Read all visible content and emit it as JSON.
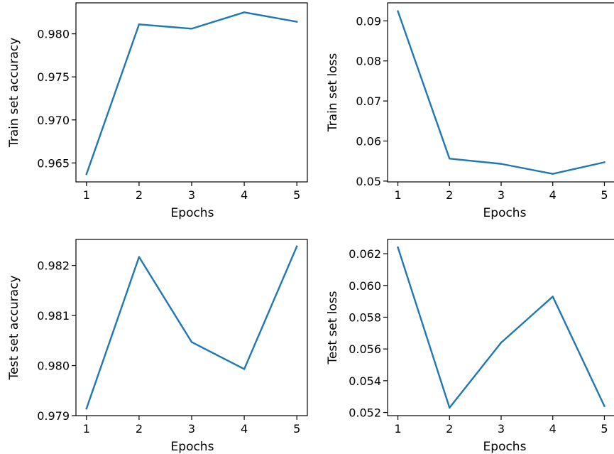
{
  "chart_data": [
    {
      "type": "line",
      "xlabel": "Epochs",
      "ylabel": "Train set accuracy",
      "x": [
        1,
        2,
        3,
        4,
        5
      ],
      "x_ticks": [
        "1",
        "2",
        "3",
        "4",
        "5"
      ],
      "xlim": [
        0.8,
        5.2
      ],
      "y_ticks": [
        "0.965",
        "0.970",
        "0.975",
        "0.980"
      ],
      "ylim": [
        0.9628,
        0.9836
      ],
      "series": [
        {
          "values": [
            0.9637,
            0.9811,
            0.9806,
            0.9825,
            0.9814
          ]
        }
      ],
      "color": "#1f77b4",
      "grid": false
    },
    {
      "type": "line",
      "xlabel": "Epochs",
      "ylabel": "Train set loss",
      "x": [
        1,
        2,
        3,
        4,
        5
      ],
      "x_ticks": [
        "1",
        "2",
        "3",
        "4",
        "5"
      ],
      "xlim": [
        0.8,
        5.2
      ],
      "y_ticks": [
        "0.05",
        "0.06",
        "0.07",
        "0.08",
        "0.09"
      ],
      "ylim": [
        0.0498,
        0.0945
      ],
      "series": [
        {
          "values": [
            0.0924,
            0.0556,
            0.0543,
            0.0518,
            0.0547
          ]
        }
      ],
      "color": "#1f77b4",
      "grid": false
    },
    {
      "type": "line",
      "xlabel": "Epochs",
      "ylabel": "Test set accuracy",
      "x": [
        1,
        2,
        3,
        4,
        5
      ],
      "x_ticks": [
        "1",
        "2",
        "3",
        "4",
        "5"
      ],
      "xlim": [
        0.8,
        5.2
      ],
      "y_ticks": [
        "0.979",
        "0.980",
        "0.981",
        "0.982"
      ],
      "ylim": [
        0.979,
        0.98252
      ],
      "series": [
        {
          "values": [
            0.97914,
            0.98217,
            0.98047,
            0.97993,
            0.98238
          ]
        }
      ],
      "color": "#1f77b4",
      "grid": false
    },
    {
      "type": "line",
      "xlabel": "Epochs",
      "ylabel": "Test set loss",
      "x": [
        1,
        2,
        3,
        4,
        5
      ],
      "x_ticks": [
        "1",
        "2",
        "3",
        "4",
        "5"
      ],
      "xlim": [
        0.8,
        5.2
      ],
      "y_ticks": [
        "0.052",
        "0.054",
        "0.056",
        "0.058",
        "0.060",
        "0.062"
      ],
      "ylim": [
        0.0518,
        0.0629
      ],
      "series": [
        {
          "values": [
            0.0624,
            0.0523,
            0.0564,
            0.0593,
            0.0524
          ]
        }
      ],
      "color": "#1f77b4",
      "grid": false
    }
  ]
}
